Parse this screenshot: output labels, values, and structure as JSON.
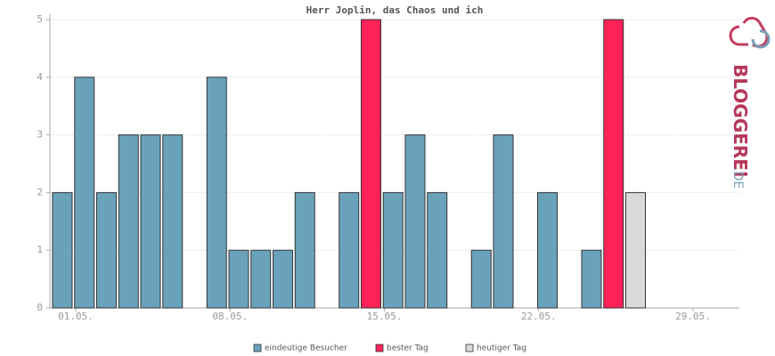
{
  "chart_data": {
    "type": "bar",
    "title": "Herr Joplin, das Chaos und ich",
    "categories": [
      "01.05.",
      null,
      null,
      null,
      null,
      null,
      null,
      "08.05.",
      null,
      null,
      null,
      null,
      null,
      null,
      "15.05.",
      null,
      null,
      null,
      null,
      null,
      null,
      "22.05.",
      null,
      null,
      null,
      null,
      null,
      null,
      "29.05.",
      null,
      null
    ],
    "series": [
      {
        "name": "eindeutige Besucher",
        "color": "#6aa2bb",
        "values": [
          2,
          4,
          2,
          3,
          3,
          3,
          0,
          4,
          1,
          1,
          1,
          2,
          0,
          2,
          null,
          2,
          3,
          2,
          0,
          1,
          3,
          0,
          2,
          0,
          1,
          null,
          null,
          0,
          0,
          0,
          0
        ]
      },
      {
        "name": "bester Tag",
        "color": "#ff2258",
        "values": [
          null,
          null,
          null,
          null,
          null,
          null,
          null,
          null,
          null,
          null,
          null,
          null,
          null,
          null,
          5,
          null,
          null,
          null,
          null,
          null,
          null,
          null,
          null,
          null,
          null,
          5,
          null,
          null,
          null,
          null,
          null
        ]
      },
      {
        "name": "heutiger Tag",
        "color": "#d9d9d9",
        "values": [
          null,
          null,
          null,
          null,
          null,
          null,
          null,
          null,
          null,
          null,
          null,
          null,
          null,
          null,
          null,
          null,
          null,
          null,
          null,
          null,
          null,
          null,
          null,
          null,
          null,
          null,
          2,
          null,
          null,
          null,
          null
        ]
      }
    ],
    "ylim": [
      0,
      5
    ],
    "yticks": [
      0,
      1,
      2,
      3,
      4,
      5
    ],
    "grid": true,
    "logo_text": "BLOGGEREI",
    "logo_suffix": ".DE"
  }
}
